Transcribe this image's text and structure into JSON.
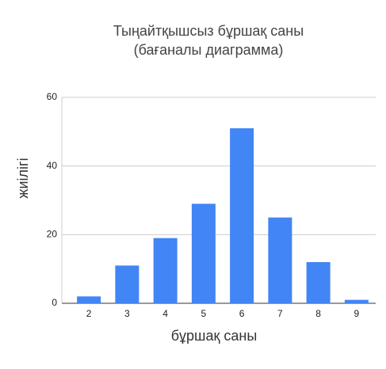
{
  "chart_data": {
    "type": "bar",
    "title": "Тыңайтқышсыз бұршақ саны",
    "subtitle": "(бағаналы диаграмма)",
    "x_label": "бұршақ саны",
    "y_label": "жиілігі",
    "categories": [
      "2",
      "3",
      "4",
      "5",
      "6",
      "7",
      "8",
      "9"
    ],
    "values": [
      2,
      11,
      19,
      29,
      51,
      25,
      12,
      1
    ],
    "color": "#4285f4",
    "ylim": [
      0,
      60
    ],
    "yticks": [
      0,
      20,
      40,
      60
    ],
    "grid": true
  }
}
